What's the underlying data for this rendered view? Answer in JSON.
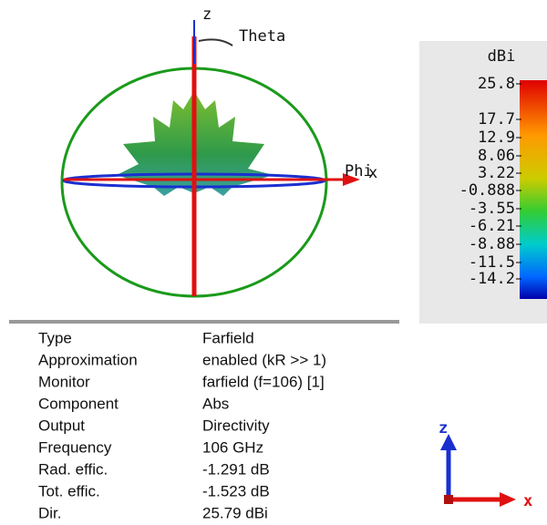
{
  "plot": {
    "axis_z": "z",
    "axis_theta": "Theta",
    "axis_phi": "Phi",
    "axis_x": "x"
  },
  "colorbar": {
    "title": "dBi",
    "labels": [
      "25.8",
      "17.7",
      "12.9",
      "8.06",
      "3.22",
      "-0.888",
      "-3.55",
      "-6.21",
      "-8.88",
      "-11.5",
      "-14.2"
    ]
  },
  "table": {
    "rows": [
      [
        "Type",
        "Farfield"
      ],
      [
        "Approximation",
        "enabled (kR >> 1)"
      ],
      [
        "Monitor",
        "farfield (f=106) [1]"
      ],
      [
        "Component",
        "Abs"
      ],
      [
        "Output",
        "Directivity"
      ],
      [
        "Frequency",
        "106 GHz"
      ],
      [
        "Rad. effic.",
        "-1.291 dB"
      ],
      [
        "Tot. effic.",
        "-1.523 dB"
      ],
      [
        "Dir.",
        "25.79 dBi"
      ]
    ]
  },
  "triad": {
    "z": "z",
    "x": "x"
  }
}
